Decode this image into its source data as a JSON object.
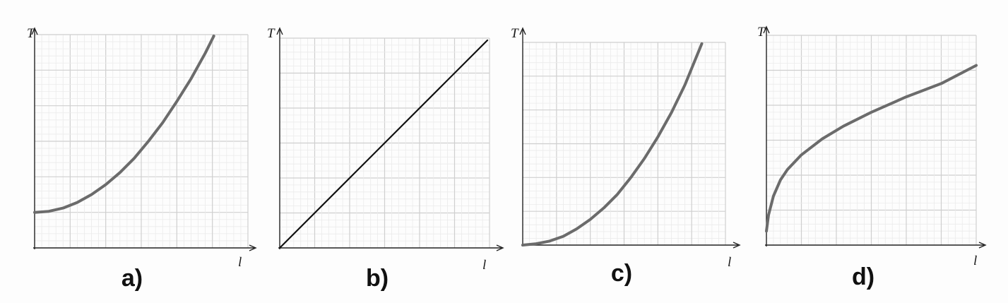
{
  "chart_data": [
    {
      "type": "line",
      "panel_label": "a)",
      "xlabel": "l",
      "ylabel": "T",
      "grid": true,
      "xlim": [
        0,
        30
      ],
      "ylim": [
        0,
        30
      ],
      "series": [
        {
          "color": "#6b6b6b",
          "x": [
            0,
            2,
            4,
            6,
            8,
            10,
            12,
            14,
            16,
            18,
            20,
            22,
            24,
            25.2
          ],
          "y": [
            5,
            5.15,
            5.6,
            6.4,
            7.5,
            8.9,
            10.6,
            12.6,
            15,
            17.6,
            20.6,
            23.8,
            27.4,
            29.8
          ]
        }
      ]
    },
    {
      "type": "line",
      "panel_label": "b)",
      "xlabel": "l",
      "ylabel": "T",
      "grid": true,
      "xlim": [
        0,
        30
      ],
      "ylim": [
        0,
        30
      ],
      "series": [
        {
          "color": "#111111",
          "x": [
            0,
            29.7
          ],
          "y": [
            0,
            29.7
          ]
        }
      ]
    },
    {
      "type": "line",
      "panel_label": "c)",
      "xlabel": "l",
      "ylabel": "T",
      "grid": true,
      "xlim": [
        0,
        30
      ],
      "ylim": [
        0,
        30
      ],
      "series": [
        {
          "color": "#6b6b6b",
          "x": [
            0,
            2,
            4,
            6,
            8,
            10,
            12,
            14,
            16,
            18,
            20,
            22,
            24,
            26.5
          ],
          "y": [
            0,
            0.2,
            0.6,
            1.3,
            2.4,
            3.8,
            5.5,
            7.5,
            10,
            12.8,
            16,
            19.6,
            23.7,
            29.8
          ]
        }
      ]
    },
    {
      "type": "line",
      "panel_label": "d)",
      "xlabel": "l",
      "ylabel": "T",
      "grid": true,
      "xlim": [
        0,
        30
      ],
      "ylim": [
        0,
        30
      ],
      "series": [
        {
          "color": "#6b6b6b",
          "x": [
            0,
            0.3,
            1,
            2,
            3,
            5,
            8,
            11,
            15,
            20,
            25,
            30
          ],
          "y": [
            2,
            4.3,
            7,
            9.3,
            10.8,
            12.9,
            15.2,
            17,
            19,
            21.2,
            23.1,
            25.7
          ]
        }
      ]
    }
  ]
}
